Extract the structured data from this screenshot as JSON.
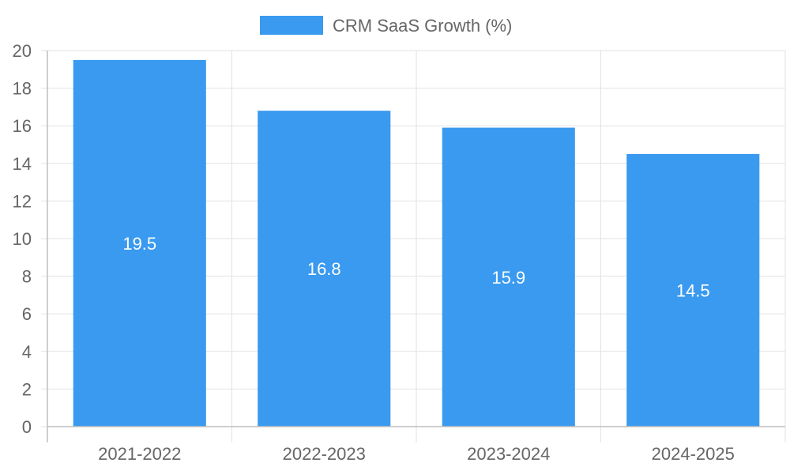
{
  "chart_data": {
    "type": "bar",
    "categories": [
      "2021-2022",
      "2022-2023",
      "2023-2024",
      "2024-2025"
    ],
    "series": [
      {
        "name": "CRM SaaS Growth (%)",
        "values": [
          19.5,
          16.8,
          15.9,
          14.5
        ],
        "color": "#3a9af0"
      }
    ],
    "ylim": [
      0,
      20
    ],
    "yticks": [
      0,
      2,
      4,
      6,
      8,
      10,
      12,
      14,
      16,
      18,
      20
    ],
    "data_labels": [
      "19.5",
      "16.8",
      "15.9",
      "14.5"
    ],
    "legend_position": "top-center",
    "grid": true
  }
}
